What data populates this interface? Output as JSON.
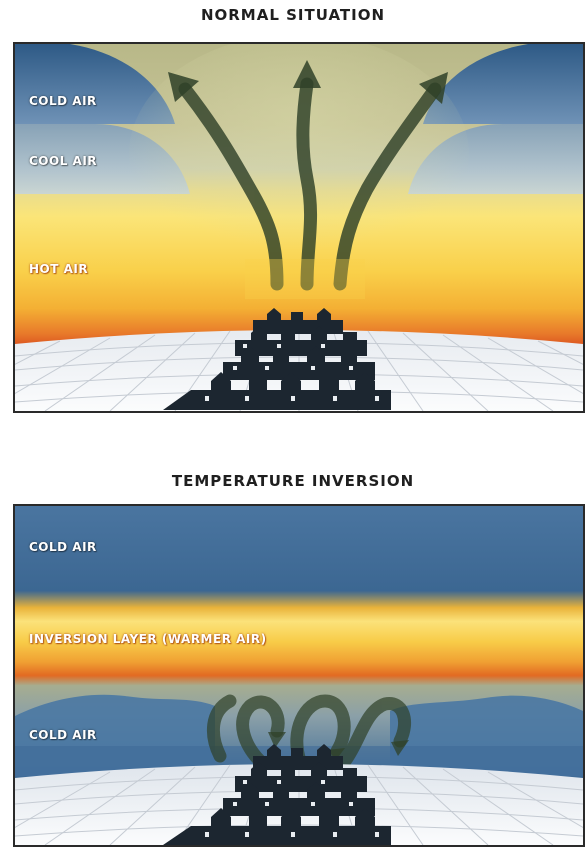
{
  "normal": {
    "title": "NORMAL SITUATION",
    "labels": {
      "cold": "COLD AIR",
      "cool": "COOL AIR",
      "hot": "HOT AIR"
    }
  },
  "inversion": {
    "title": "TEMPERATURE INVERSION",
    "labels": {
      "cold_top": "COLD AIR",
      "inversion_layer": "INVERSION LAYER (WARMER AIR)",
      "cold_bottom": "COLD AIR"
    }
  },
  "colors": {
    "cold_air": "#3f6b97",
    "cool_air": "#a9c1d4",
    "hot_air": "#f6c73c",
    "warm_edge": "#e45e1a",
    "ground": "#f1f3f6",
    "grid": "#c5cbd3",
    "houses": "#1c2630",
    "arrows": "#2f4128"
  },
  "icons": {
    "arrow": "rising-air-arrow-icon",
    "houses": "town-houses-icon"
  }
}
